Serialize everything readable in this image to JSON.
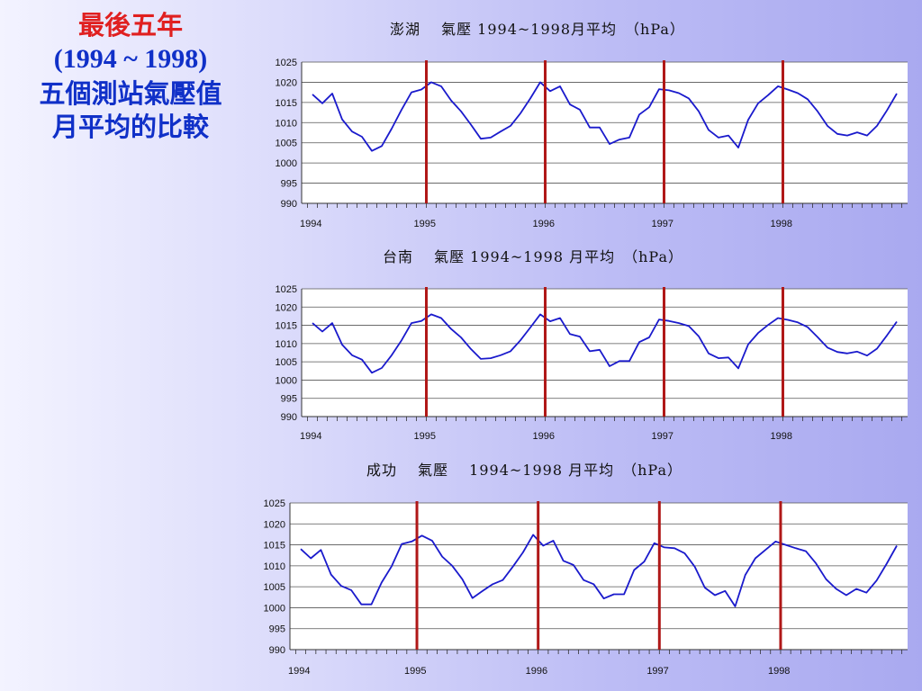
{
  "slide": {
    "title_line1": "最後五年",
    "title_line2": "(1994 ~ 1998)",
    "title_line3": "五個測站氣壓值",
    "title_line4": "月平均的比較"
  },
  "colors": {
    "series_line": "#1a1acc",
    "year_marker": "#b01818",
    "gridline": "#555555",
    "plot_background": "#ffffff"
  },
  "chart_data": [
    {
      "type": "line",
      "title": "澎湖　 氣壓 1994~1998月平均　（hPa）",
      "xlabel": "",
      "ylabel": "",
      "x_tick_labels": [
        "1994",
        "1995",
        "1996",
        "1997",
        "1998"
      ],
      "y_tick_labels": [
        "990",
        "995",
        "1000",
        "1005",
        "1010",
        "1015",
        "1020",
        "1025"
      ],
      "ylim": [
        990,
        1025
      ],
      "grid": true,
      "year_markers": [
        "1995",
        "1996",
        "1997",
        "1998"
      ],
      "series": [
        {
          "values": [
            1017.0,
            1014.8,
            1017.2,
            1010.8,
            1007.8,
            1006.5,
            1003.0,
            1004.2,
            1008.5,
            1013.2,
            1017.5,
            1018.2,
            1020.0,
            1019.0,
            1015.5,
            1012.8,
            1009.5,
            1006.0,
            1006.3,
            1007.8,
            1009.2,
            1012.3,
            1016.0,
            1020.0,
            1017.8,
            1019.0,
            1014.5,
            1013.2,
            1008.8,
            1008.8,
            1004.7,
            1005.8,
            1006.3,
            1012.0,
            1013.8,
            1018.3,
            1018.0,
            1017.3,
            1016.0,
            1012.8,
            1008.2,
            1006.3,
            1006.8,
            1003.8,
            1010.7,
            1014.8,
            1016.8,
            1019.0,
            1018.2,
            1017.3,
            1015.8,
            1012.8,
            1009.2,
            1007.2,
            1006.8,
            1007.6,
            1006.8,
            1009.2,
            1013.0,
            1017.2
          ]
        }
      ]
    },
    {
      "type": "line",
      "title": "台南　 氣壓 1994~1998 月平均　（hPa）",
      "xlabel": "",
      "ylabel": "",
      "x_tick_labels": [
        "1994",
        "1995",
        "1996",
        "1997",
        "1998"
      ],
      "y_tick_labels": [
        "990",
        "995",
        "1000",
        "1005",
        "1010",
        "1015",
        "1020",
        "1025"
      ],
      "ylim": [
        990,
        1025
      ],
      "grid": true,
      "year_markers": [
        "1995",
        "1996",
        "1997",
        "1998"
      ],
      "series": [
        {
          "values": [
            1015.6,
            1013.3,
            1015.6,
            1009.7,
            1006.8,
            1005.6,
            1002.0,
            1003.3,
            1006.8,
            1010.9,
            1015.6,
            1016.2,
            1018.0,
            1017.0,
            1014.0,
            1011.7,
            1008.5,
            1005.8,
            1006.0,
            1006.8,
            1007.9,
            1010.9,
            1014.4,
            1018.0,
            1016.1,
            1017.0,
            1012.6,
            1011.9,
            1007.9,
            1008.3,
            1003.8,
            1005.2,
            1005.2,
            1010.4,
            1011.7,
            1016.6,
            1016.2,
            1015.6,
            1014.8,
            1012.0,
            1007.3,
            1006.0,
            1006.2,
            1003.2,
            1009.8,
            1012.9,
            1015.1,
            1017.0,
            1016.5,
            1015.8,
            1014.5,
            1011.8,
            1008.9,
            1007.7,
            1007.3,
            1007.8,
            1006.7,
            1008.6,
            1012.2,
            1016.0
          ]
        }
      ]
    },
    {
      "type": "line",
      "title": "成功　 氣壓 　1994~1998 月平均　（hPa）",
      "xlabel": "",
      "ylabel": "",
      "x_tick_labels": [
        "1994",
        "1995",
        "1996",
        "1997",
        "1998"
      ],
      "y_tick_labels": [
        "990",
        "995",
        "1000",
        "1005",
        "1010",
        "1015",
        "1020",
        "1025"
      ],
      "ylim": [
        990,
        1025
      ],
      "grid": true,
      "year_markers": [
        "1995",
        "1996",
        "1997",
        "1998"
      ],
      "series": [
        {
          "values": [
            1014.0,
            1011.8,
            1013.8,
            1007.9,
            1005.2,
            1004.2,
            1000.8,
            1000.8,
            1006.0,
            1009.9,
            1015.2,
            1015.8,
            1017.2,
            1016.0,
            1012.2,
            1010.0,
            1006.8,
            1002.3,
            1004.0,
            1005.6,
            1006.6,
            1009.8,
            1013.2,
            1017.4,
            1014.8,
            1016.0,
            1011.2,
            1010.2,
            1006.6,
            1005.6,
            1002.2,
            1003.2,
            1003.2,
            1009.0,
            1011.0,
            1015.4,
            1014.4,
            1014.2,
            1013.0,
            1009.8,
            1004.8,
            1003.0,
            1004.0,
            1000.3,
            1007.8,
            1011.8,
            1013.8,
            1015.8,
            1015.0,
            1014.2,
            1013.5,
            1010.6,
            1006.8,
            1004.5,
            1003.0,
            1004.5,
            1003.6,
            1006.5,
            1010.5,
            1014.8
          ]
        }
      ]
    }
  ]
}
